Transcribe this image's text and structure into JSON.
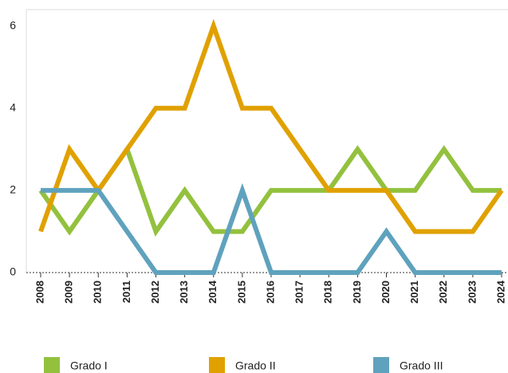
{
  "chart_data": {
    "type": "line",
    "categories": [
      "2008",
      "2009",
      "2010",
      "2011",
      "2012",
      "2013",
      "2014",
      "2015",
      "2016",
      "2017",
      "2018",
      "2019",
      "2020",
      "2021",
      "2022",
      "2023",
      "2024"
    ],
    "series": [
      {
        "name": "Grado I",
        "color": "#93c13e",
        "values": [
          2,
          1,
          2,
          3,
          1,
          2,
          1,
          1,
          2,
          2,
          2,
          3,
          2,
          2,
          3,
          2,
          2
        ]
      },
      {
        "name": "Grado II",
        "color": "#e0a100",
        "values": [
          1,
          3,
          2,
          3,
          4,
          4,
          6,
          4,
          4,
          3,
          2,
          2,
          2,
          1,
          1,
          1,
          2
        ]
      },
      {
        "name": "Grado III",
        "color": "#5fa2bd",
        "values": [
          2,
          2,
          2,
          1,
          0,
          0,
          0,
          2,
          0,
          0,
          0,
          0,
          1,
          0,
          0,
          0,
          0
        ]
      }
    ],
    "ylim": [
      0,
      6.4
    ],
    "yticks": [
      0,
      2,
      4,
      6
    ]
  }
}
